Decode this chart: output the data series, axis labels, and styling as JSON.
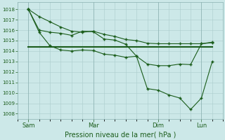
{
  "bg_color": "#cce8e8",
  "grid_color": "#aacccc",
  "line_color": "#1a5c1a",
  "ylabel_values": [
    1008,
    1009,
    1010,
    1011,
    1012,
    1013,
    1014,
    1015,
    1016,
    1017,
    1018
  ],
  "ylim": [
    1007.5,
    1018.7
  ],
  "xlabel": "Pression niveau de la mer( hPa )",
  "xtick_labels": [
    "Sam",
    "Mar",
    "Dim",
    "Lun"
  ],
  "xtick_positions": [
    0,
    36,
    72,
    96
  ],
  "xlim": [
    -6,
    108
  ],
  "line1_x": [
    0,
    6,
    12,
    18,
    24,
    30,
    36,
    42,
    48,
    54,
    60,
    66,
    72,
    78,
    84,
    90,
    96,
    102
  ],
  "line1_y": [
    1018.0,
    1017.3,
    1016.8,
    1016.3,
    1015.9,
    1015.8,
    1015.9,
    1015.6,
    1015.4,
    1015.1,
    1015.0,
    1014.75,
    1014.7,
    1014.7,
    1014.7,
    1014.7,
    1014.7,
    1014.8
  ],
  "line2_x": [
    0,
    6,
    12,
    18,
    24,
    30,
    36,
    42,
    48,
    54,
    60,
    66,
    72,
    78,
    84,
    90,
    96,
    102
  ],
  "line2_y": [
    1018.0,
    1016.0,
    1015.8,
    1015.7,
    1015.5,
    1015.9,
    1015.85,
    1015.15,
    1015.05,
    1014.65,
    1013.5,
    1012.75,
    1012.6,
    1012.6,
    1012.75,
    1012.7,
    1014.7,
    1014.85
  ],
  "line3_x": [
    0,
    6,
    12,
    18,
    24,
    30,
    36,
    42,
    48,
    54,
    60,
    66,
    72,
    78,
    84,
    90,
    96,
    102
  ],
  "line3_y": [
    1018.0,
    1015.8,
    1014.5,
    1014.1,
    1014.0,
    1014.1,
    1014.05,
    1013.7,
    1013.6,
    1013.4,
    1013.5,
    1010.4,
    1010.25,
    1009.8,
    1009.5,
    1008.4,
    1009.5,
    1013.0
  ],
  "line4_x": [
    0,
    102
  ],
  "line4_y": [
    1014.4,
    1014.4
  ]
}
